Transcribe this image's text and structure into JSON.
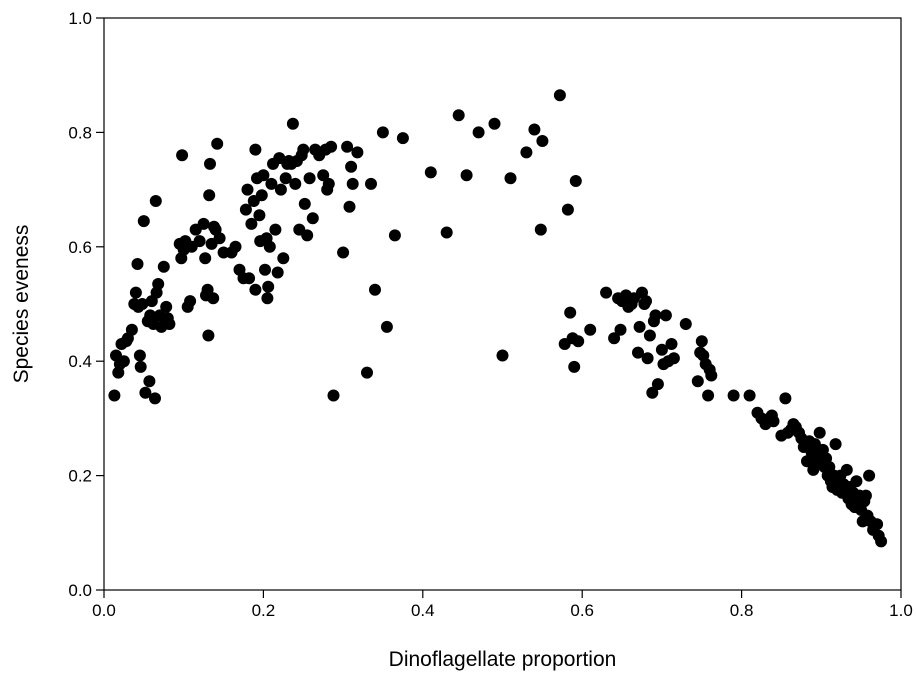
{
  "chart_data": {
    "type": "scatter",
    "title": "",
    "xlabel": "Dinoflagellate proportion",
    "ylabel": "Species eveness",
    "xlim": [
      0,
      1
    ],
    "ylim": [
      0,
      1
    ],
    "xticks": [
      "0.0",
      "0.2",
      "0.4",
      "0.6",
      "0.8",
      "1.0"
    ],
    "yticks": [
      "0.0",
      "0.2",
      "0.4",
      "0.6",
      "0.8",
      "1.0"
    ],
    "grid": false,
    "legend": "none",
    "marker_color": "#000000",
    "series": [
      {
        "points": [
          [
            0.013,
            0.34
          ],
          [
            0.015,
            0.41
          ],
          [
            0.018,
            0.38
          ],
          [
            0.02,
            0.395
          ],
          [
            0.022,
            0.43
          ],
          [
            0.025,
            0.4
          ],
          [
            0.028,
            0.435
          ],
          [
            0.03,
            0.44
          ],
          [
            0.035,
            0.455
          ],
          [
            0.038,
            0.5
          ],
          [
            0.04,
            0.52
          ],
          [
            0.042,
            0.57
          ],
          [
            0.043,
            0.495
          ],
          [
            0.045,
            0.41
          ],
          [
            0.046,
            0.39
          ],
          [
            0.048,
            0.5
          ],
          [
            0.05,
            0.645
          ],
          [
            0.052,
            0.345
          ],
          [
            0.055,
            0.47
          ],
          [
            0.057,
            0.365
          ],
          [
            0.058,
            0.48
          ],
          [
            0.06,
            0.505
          ],
          [
            0.062,
            0.465
          ],
          [
            0.064,
            0.335
          ],
          [
            0.065,
            0.68
          ],
          [
            0.066,
            0.52
          ],
          [
            0.068,
            0.535
          ],
          [
            0.07,
            0.48
          ],
          [
            0.072,
            0.46
          ],
          [
            0.075,
            0.565
          ],
          [
            0.078,
            0.495
          ],
          [
            0.08,
            0.475
          ],
          [
            0.082,
            0.465
          ],
          [
            0.095,
            0.605
          ],
          [
            0.097,
            0.58
          ],
          [
            0.098,
            0.76
          ],
          [
            0.1,
            0.595
          ],
          [
            0.102,
            0.61
          ],
          [
            0.105,
            0.495
          ],
          [
            0.108,
            0.505
          ],
          [
            0.11,
            0.6
          ],
          [
            0.115,
            0.63
          ],
          [
            0.12,
            0.61
          ],
          [
            0.125,
            0.64
          ],
          [
            0.127,
            0.58
          ],
          [
            0.128,
            0.515
          ],
          [
            0.13,
            0.525
          ],
          [
            0.131,
            0.445
          ],
          [
            0.132,
            0.69
          ],
          [
            0.133,
            0.745
          ],
          [
            0.135,
            0.605
          ],
          [
            0.137,
            0.51
          ],
          [
            0.138,
            0.635
          ],
          [
            0.14,
            0.63
          ],
          [
            0.142,
            0.78
          ],
          [
            0.145,
            0.615
          ],
          [
            0.15,
            0.59
          ],
          [
            0.16,
            0.59
          ],
          [
            0.165,
            0.6
          ],
          [
            0.17,
            0.56
          ],
          [
            0.175,
            0.545
          ],
          [
            0.178,
            0.665
          ],
          [
            0.18,
            0.7
          ],
          [
            0.182,
            0.545
          ],
          [
            0.185,
            0.64
          ],
          [
            0.188,
            0.68
          ],
          [
            0.19,
            0.77
          ],
          [
            0.19,
            0.525
          ],
          [
            0.192,
            0.72
          ],
          [
            0.195,
            0.655
          ],
          [
            0.196,
            0.61
          ],
          [
            0.198,
            0.69
          ],
          [
            0.2,
            0.725
          ],
          [
            0.202,
            0.56
          ],
          [
            0.204,
            0.615
          ],
          [
            0.205,
            0.51
          ],
          [
            0.206,
            0.53
          ],
          [
            0.208,
            0.6
          ],
          [
            0.21,
            0.71
          ],
          [
            0.212,
            0.745
          ],
          [
            0.215,
            0.63
          ],
          [
            0.218,
            0.555
          ],
          [
            0.22,
            0.755
          ],
          [
            0.222,
            0.7
          ],
          [
            0.225,
            0.58
          ],
          [
            0.228,
            0.72
          ],
          [
            0.23,
            0.745
          ],
          [
            0.232,
            0.75
          ],
          [
            0.235,
            0.745
          ],
          [
            0.237,
            0.815
          ],
          [
            0.24,
            0.71
          ],
          [
            0.242,
            0.75
          ],
          [
            0.245,
            0.63
          ],
          [
            0.248,
            0.76
          ],
          [
            0.25,
            0.77
          ],
          [
            0.252,
            0.675
          ],
          [
            0.255,
            0.62
          ],
          [
            0.258,
            0.72
          ],
          [
            0.262,
            0.65
          ],
          [
            0.265,
            0.77
          ],
          [
            0.27,
            0.76
          ],
          [
            0.275,
            0.725
          ],
          [
            0.278,
            0.77
          ],
          [
            0.28,
            0.7
          ],
          [
            0.282,
            0.71
          ],
          [
            0.285,
            0.775
          ],
          [
            0.288,
            0.34
          ],
          [
            0.3,
            0.59
          ],
          [
            0.305,
            0.775
          ],
          [
            0.308,
            0.67
          ],
          [
            0.31,
            0.74
          ],
          [
            0.312,
            0.71
          ],
          [
            0.318,
            0.765
          ],
          [
            0.33,
            0.38
          ],
          [
            0.335,
            0.71
          ],
          [
            0.34,
            0.525
          ],
          [
            0.35,
            0.8
          ],
          [
            0.355,
            0.46
          ],
          [
            0.365,
            0.62
          ],
          [
            0.375,
            0.79
          ],
          [
            0.41,
            0.73
          ],
          [
            0.43,
            0.625
          ],
          [
            0.445,
            0.83
          ],
          [
            0.455,
            0.725
          ],
          [
            0.47,
            0.8
          ],
          [
            0.49,
            0.815
          ],
          [
            0.5,
            0.41
          ],
          [
            0.51,
            0.72
          ],
          [
            0.53,
            0.765
          ],
          [
            0.54,
            0.805
          ],
          [
            0.548,
            0.63
          ],
          [
            0.55,
            0.785
          ],
          [
            0.572,
            0.865
          ],
          [
            0.578,
            0.43
          ],
          [
            0.582,
            0.665
          ],
          [
            0.585,
            0.485
          ],
          [
            0.588,
            0.44
          ],
          [
            0.59,
            0.39
          ],
          [
            0.592,
            0.715
          ],
          [
            0.595,
            0.435
          ],
          [
            0.61,
            0.455
          ],
          [
            0.63,
            0.52
          ],
          [
            0.64,
            0.44
          ],
          [
            0.645,
            0.51
          ],
          [
            0.648,
            0.455
          ],
          [
            0.65,
            0.505
          ],
          [
            0.655,
            0.515
          ],
          [
            0.658,
            0.495
          ],
          [
            0.662,
            0.5
          ],
          [
            0.665,
            0.51
          ],
          [
            0.67,
            0.415
          ],
          [
            0.672,
            0.46
          ],
          [
            0.675,
            0.52
          ],
          [
            0.678,
            0.5
          ],
          [
            0.68,
            0.505
          ],
          [
            0.682,
            0.405
          ],
          [
            0.685,
            0.445
          ],
          [
            0.688,
            0.345
          ],
          [
            0.69,
            0.47
          ],
          [
            0.692,
            0.48
          ],
          [
            0.695,
            0.36
          ],
          [
            0.7,
            0.42
          ],
          [
            0.702,
            0.395
          ],
          [
            0.705,
            0.48
          ],
          [
            0.708,
            0.4
          ],
          [
            0.712,
            0.43
          ],
          [
            0.715,
            0.405
          ],
          [
            0.73,
            0.465
          ],
          [
            0.745,
            0.365
          ],
          [
            0.748,
            0.415
          ],
          [
            0.75,
            0.435
          ],
          [
            0.752,
            0.41
          ],
          [
            0.755,
            0.395
          ],
          [
            0.758,
            0.34
          ],
          [
            0.76,
            0.385
          ],
          [
            0.762,
            0.375
          ],
          [
            0.79,
            0.34
          ],
          [
            0.81,
            0.34
          ],
          [
            0.82,
            0.31
          ],
          [
            0.825,
            0.3
          ],
          [
            0.83,
            0.29
          ],
          [
            0.835,
            0.3
          ],
          [
            0.838,
            0.305
          ],
          [
            0.84,
            0.295
          ],
          [
            0.85,
            0.27
          ],
          [
            0.855,
            0.335
          ],
          [
            0.858,
            0.275
          ],
          [
            0.862,
            0.28
          ],
          [
            0.865,
            0.29
          ],
          [
            0.868,
            0.285
          ],
          [
            0.872,
            0.275
          ],
          [
            0.875,
            0.265
          ],
          [
            0.878,
            0.25
          ],
          [
            0.882,
            0.225
          ],
          [
            0.885,
            0.26
          ],
          [
            0.888,
            0.24
          ],
          [
            0.89,
            0.21
          ],
          [
            0.892,
            0.255
          ],
          [
            0.895,
            0.225
          ],
          [
            0.898,
            0.275
          ],
          [
            0.9,
            0.235
          ],
          [
            0.902,
            0.245
          ],
          [
            0.904,
            0.215
          ],
          [
            0.906,
            0.23
          ],
          [
            0.908,
            0.2
          ],
          [
            0.91,
            0.215
          ],
          [
            0.912,
            0.19
          ],
          [
            0.914,
            0.18
          ],
          [
            0.916,
            0.2
          ],
          [
            0.918,
            0.255
          ],
          [
            0.92,
            0.175
          ],
          [
            0.922,
            0.19
          ],
          [
            0.924,
            0.2
          ],
          [
            0.926,
            0.17
          ],
          [
            0.928,
            0.185
          ],
          [
            0.93,
            0.175
          ],
          [
            0.932,
            0.21
          ],
          [
            0.934,
            0.16
          ],
          [
            0.936,
            0.18
          ],
          [
            0.938,
            0.15
          ],
          [
            0.94,
            0.17
          ],
          [
            0.942,
            0.145
          ],
          [
            0.944,
            0.19
          ],
          [
            0.946,
            0.155
          ],
          [
            0.948,
            0.165
          ],
          [
            0.95,
            0.14
          ],
          [
            0.952,
            0.12
          ],
          [
            0.954,
            0.155
          ],
          [
            0.956,
            0.165
          ],
          [
            0.958,
            0.13
          ],
          [
            0.96,
            0.2
          ],
          [
            0.962,
            0.12
          ],
          [
            0.965,
            0.105
          ],
          [
            0.97,
            0.115
          ],
          [
            0.975,
            0.085
          ],
          [
            0.972,
            0.095
          ]
        ]
      }
    ]
  }
}
